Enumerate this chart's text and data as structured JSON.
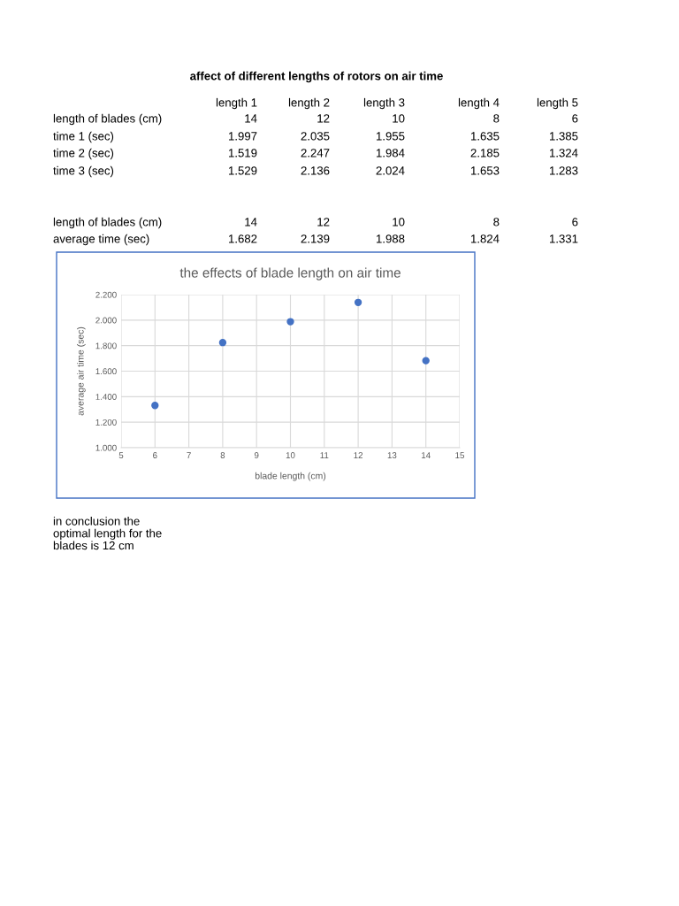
{
  "chart_data": {
    "type": "scatter",
    "title": "the effects of blade length on air time",
    "xlabel": "blade length (cm)",
    "ylabel": "average air time (sec)",
    "x": [
      14,
      12,
      10,
      8,
      6
    ],
    "series": [
      {
        "color": "#4472c4",
        "values": [
          1.682,
          2.139,
          1.988,
          1.824,
          1.331
        ]
      }
    ],
    "xlim": [
      5,
      15
    ],
    "xticks": [
      5,
      6,
      7,
      8,
      9,
      10,
      11,
      12,
      13,
      14,
      15
    ],
    "ylim": [
      1.0,
      2.2
    ],
    "yticks": [
      {
        "value": 1.0,
        "label": "1.000"
      },
      {
        "value": 1.2,
        "label": "1.200"
      },
      {
        "value": 1.4,
        "label": "1.400"
      },
      {
        "value": 1.6,
        "label": "1.600"
      },
      {
        "value": 1.8,
        "label": "1.800"
      },
      {
        "value": 2.0,
        "label": "2.000"
      },
      {
        "value": 2.2,
        "label": "2.200"
      }
    ],
    "grid": true,
    "marker": "circle",
    "annotations": [
      "affect of different lengths of rotors on air time",
      "length 1",
      "length 2",
      "length 3",
      "length 4",
      "length 5",
      "length of blades (cm)",
      "14",
      "12",
      "10",
      "8",
      "6",
      "time 1 (sec)",
      "1.997",
      "2.035",
      "1.955",
      "1.635",
      "1.385",
      "time 2 (sec)",
      "1.519",
      "2.247",
      "1.984",
      "2.185",
      "1.324",
      "time 3 (sec)",
      "1.529",
      "2.136",
      "2.024",
      "1.653",
      "1.283",
      "length of blades (cm)",
      "14",
      "12",
      "10",
      "8",
      "6",
      "average time (sec)",
      "1.682",
      "2.139",
      "1.988",
      "1.824",
      "1.331",
      "in conclusion the\noptimal length for the\nblades is 12 cm"
    ]
  }
}
